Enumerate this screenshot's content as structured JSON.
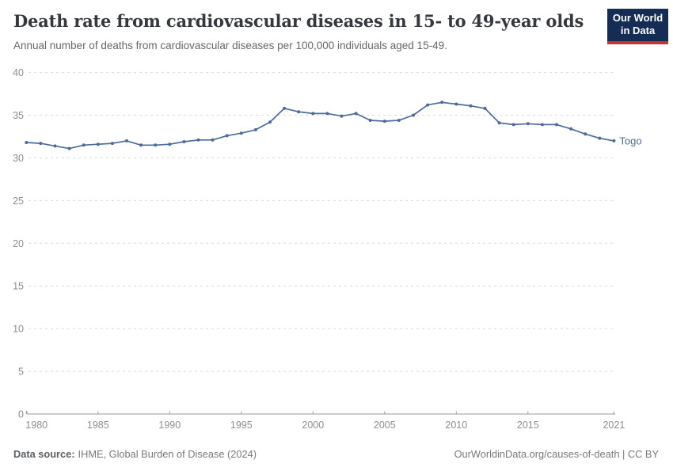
{
  "header": {
    "title": "Death rate from cardiovascular diseases in 15- to 49-year olds",
    "subtitle": "Annual number of deaths from cardiovascular diseases per 100,000 individuals aged 15-49."
  },
  "logo": {
    "line1": "Our World",
    "line2": "in Data"
  },
  "colors": {
    "line": "#4C6A9C",
    "logo_background": "#152d54",
    "logo_accent": "#c4372e",
    "gridline": "#d8dadc",
    "axis": "#97999c",
    "tick_text": "#8a8d91"
  },
  "chart_data": {
    "type": "line",
    "title": "Death rate from cardiovascular diseases in 15- to 49-year olds",
    "subtitle": "Annual number of deaths from cardiovascular diseases per 100,000 individuals aged 15-49.",
    "entity": "Togo",
    "unit": "deaths per 100,000 individuals aged 15-49",
    "x": [
      1980,
      1981,
      1982,
      1983,
      1984,
      1985,
      1986,
      1987,
      1988,
      1989,
      1990,
      1991,
      1992,
      1993,
      1994,
      1995,
      1996,
      1997,
      1998,
      1999,
      2000,
      2001,
      2002,
      2003,
      2004,
      2005,
      2006,
      2007,
      2008,
      2009,
      2010,
      2011,
      2012,
      2013,
      2014,
      2015,
      2016,
      2017,
      2018,
      2019,
      2020,
      2021
    ],
    "values": [
      31.8,
      31.7,
      31.4,
      31.1,
      31.5,
      31.6,
      31.7,
      32.0,
      31.5,
      31.5,
      31.6,
      31.9,
      32.1,
      32.1,
      32.6,
      32.9,
      33.3,
      34.2,
      35.8,
      35.4,
      35.2,
      35.2,
      34.9,
      35.2,
      34.4,
      34.3,
      34.4,
      35.0,
      36.2,
      36.5,
      36.3,
      36.1,
      35.8,
      34.1,
      33.9,
      34.0,
      33.9,
      33.9,
      33.4,
      32.8,
      32.3,
      32.0
    ],
    "ylim": [
      0,
      40
    ],
    "yticks": [
      0,
      5,
      10,
      15,
      20,
      25,
      30,
      35,
      40
    ],
    "xticks": [
      1980,
      1985,
      1990,
      1995,
      2000,
      2005,
      2010,
      2015,
      2021
    ],
    "grid": "horizontal-dashed",
    "legend_position": "end-of-line-label",
    "line_color": "#4C6A9C"
  },
  "footer": {
    "source_label": "Data source:",
    "source_value": "IHME, Global Burden of Disease (2024)",
    "url": "OurWorldinData.org/causes-of-death",
    "license": " | CC BY"
  }
}
